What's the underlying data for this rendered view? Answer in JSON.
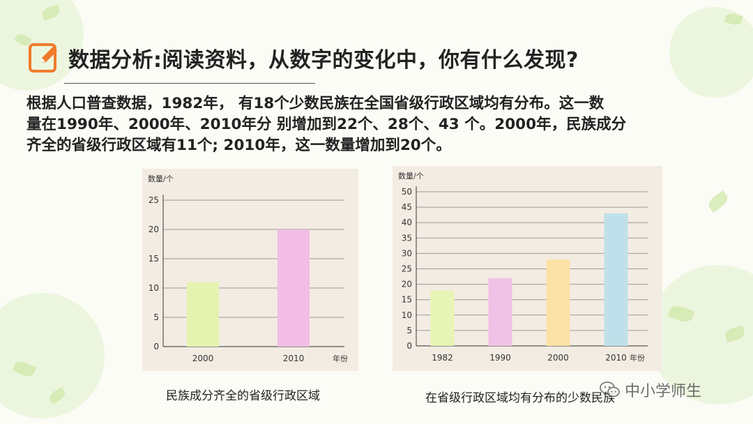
{
  "title": "数据分析:阅读资料，从数字的变化中，你有什么发现?",
  "body_lines": [
    "根据人口普查数据，1982年， 有18个少数民族在全国省级行政区域均有分布。这一数",
    "量在1990年、2000年、2010年分 别增加到22个、28个、43 个。2000年，民族成分",
    "齐全的省级行政区域有11个; 2010年，这一数量增加到20个。"
  ],
  "captions": {
    "left": "民族成分齐全的省级行政区域",
    "right": "在省级行政区域均有分布的少数民族"
  },
  "watermark": "中小学师生",
  "chart_data": [
    {
      "type": "bar",
      "ylabel": "数量/个",
      "xlabel": "年份",
      "categories": [
        "2000",
        "2010"
      ],
      "values": [
        11,
        20
      ],
      "colors": [
        "#e4f3b0",
        "#f1bde4"
      ],
      "ylim": [
        0,
        25
      ],
      "yticks": [
        0,
        5,
        10,
        15,
        20,
        25
      ],
      "grid": true
    },
    {
      "type": "bar",
      "ylabel": "数量/个",
      "xlabel": "年份",
      "categories": [
        "1982",
        "1990",
        "2000",
        "2010"
      ],
      "values": [
        18,
        22,
        28,
        43
      ],
      "colors": [
        "#e7f4b4",
        "#f0c2e6",
        "#fbe2a6",
        "#bfe0ea"
      ],
      "ylim": [
        0,
        50
      ],
      "yticks": [
        0,
        5,
        10,
        15,
        20,
        25,
        30,
        35,
        40,
        45,
        50
      ],
      "grid": true
    }
  ]
}
